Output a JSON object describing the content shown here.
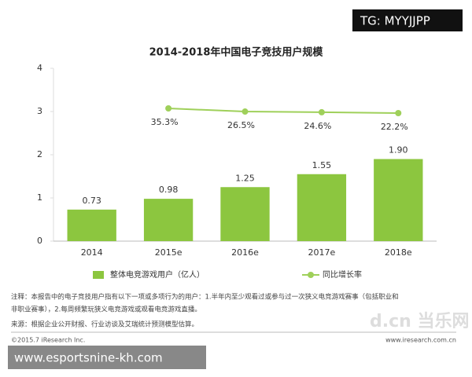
{
  "chart_data": {
    "type": "bar",
    "title": "2014-2018年中国电子竞技用户规模",
    "categories": [
      "2014",
      "2015e",
      "2016e",
      "2017e",
      "2018e"
    ],
    "series": [
      {
        "name": "整体电竞游戏用户（亿人）",
        "type": "bar",
        "color": "#8cc63f",
        "values": [
          0.73,
          0.98,
          1.25,
          1.55,
          1.9
        ],
        "value_labels": [
          "0.73",
          "0.98",
          "1.25",
          "1.55",
          "1.90"
        ]
      },
      {
        "name": "同比增长率",
        "type": "line",
        "axis": "y2",
        "color": "#9fd05a",
        "values": [
          null,
          35.3,
          26.5,
          24.6,
          22.2
        ],
        "value_labels": [
          null,
          "35.3%",
          "26.5%",
          "24.6%",
          "22.2%"
        ]
      }
    ],
    "ylim": [
      0,
      4
    ],
    "yticks": [
      0,
      1,
      2,
      3,
      4
    ],
    "grid": false,
    "legend": "bottom",
    "notes": [
      "注释：本报告中的电子竞技用户指有以下一项或多项行为的用户：1.半年内至少观看过或参与过一次狭义电竞游戏赛事（包括职业和",
      "非职业赛事），2.每周频繁玩狭义电竞游戏或观看电竞游戏直播。"
    ],
    "source": "来源：根据企业公开财报、行业访谈及艾瑞统计预测模型估算。",
    "copyright": "©2015.7 iResearch Inc.",
    "website": "www.iresearch.com.cn"
  },
  "watermarks": {
    "top": "TG: MYYJJPP",
    "bottom": "www.esportsnine-kh.com",
    "logo": "d.cn 当乐网"
  }
}
